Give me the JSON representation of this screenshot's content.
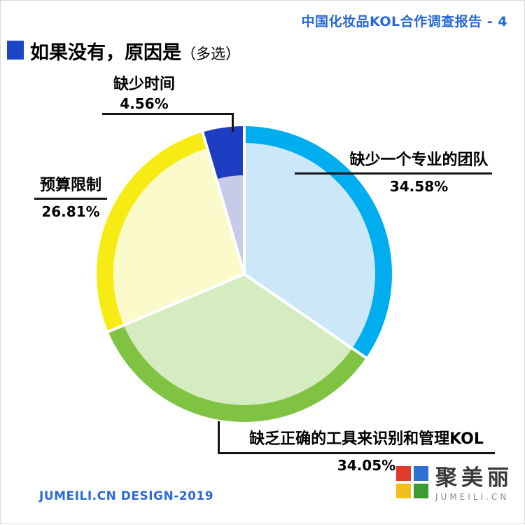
{
  "header": {
    "report_label": "中国化妆品KOL合作调查报告 - 4"
  },
  "title": {
    "text": "如果没有，原因是",
    "suffix": "（多选）"
  },
  "chart_data": {
    "type": "pie",
    "title": "如果没有，原因是（多选）",
    "direction": "clockwise",
    "start_angle_deg": 0,
    "labels_style": "callouts-with-leader-lines",
    "legend_position": "none",
    "slices": [
      {
        "label": "缺少一个专业的团队",
        "value": 34.58,
        "display": "34.58%",
        "ring_color": "#00adef",
        "fill_color": "#cbe7f8",
        "ring_depth": 24
      },
      {
        "label": "缺乏正确的工具来识别和管理KOL",
        "value": 34.05,
        "display": "34.05%",
        "ring_color": "#80c242",
        "fill_color": "#d5ebc0",
        "ring_depth": 24
      },
      {
        "label": "预算限制",
        "value": 26.81,
        "display": "26.81%",
        "ring_color": "#f6ec13",
        "fill_color": "#fbfacb",
        "ring_depth": 24
      },
      {
        "label": "缺少时间",
        "value": 4.56,
        "display": "4.56%",
        "ring_color": "#1d3ec2",
        "fill_color": "#c6cbea",
        "ring_depth": 70
      }
    ]
  },
  "footer": {
    "credit": "JUMEILI.CN DESIGN-2019",
    "logo_text": "聚美丽",
    "logo_sub": "JUMEILI.CN"
  },
  "colors": {
    "accent_blue": "#2667d6",
    "title_square": "#1c45c6",
    "line_black": "#151515"
  }
}
